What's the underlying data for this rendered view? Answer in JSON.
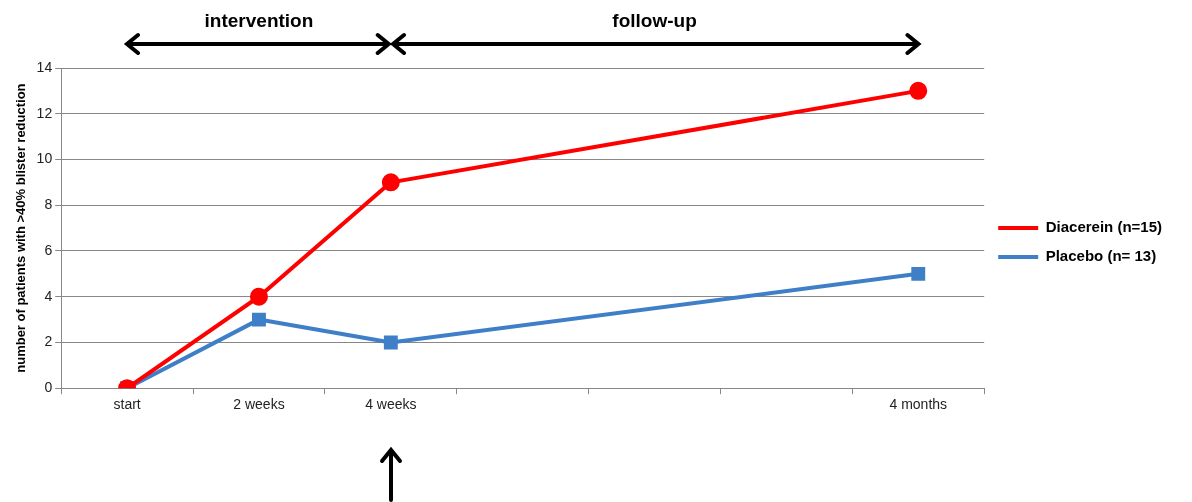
{
  "chart_data": {
    "type": "line",
    "ylabel": "number of patients with >40% blister reduction",
    "categories": [
      "start",
      "2 weeks",
      "4 weeks",
      null,
      null,
      null,
      "4 months"
    ],
    "series": [
      {
        "name": "Diacerein (n=15)",
        "color": "#ff0000",
        "marker": "circle",
        "values": [
          0,
          4,
          9,
          null,
          null,
          null,
          13
        ]
      },
      {
        "name": "Placebo (n= 13)",
        "color": "#3f7fc8",
        "marker": "square",
        "values": [
          0,
          3,
          2,
          null,
          null,
          null,
          5
        ]
      }
    ],
    "ylim": [
      0,
      14
    ],
    "yticks": [
      0,
      2,
      4,
      6,
      8,
      10,
      12,
      14
    ],
    "grid": "y",
    "legend": "right",
    "annotations": [
      "intervention",
      "follow-up"
    ]
  }
}
